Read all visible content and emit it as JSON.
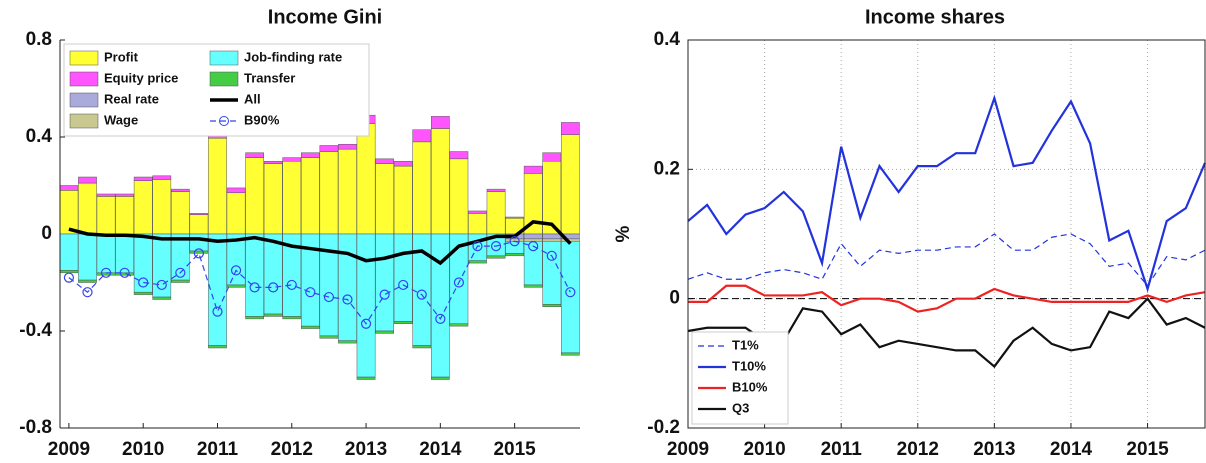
{
  "chart_data": [
    {
      "type": "bar",
      "stacked": true,
      "title": "Income Gini",
      "x": [
        2009,
        2009.25,
        2009.5,
        2009.75,
        2010,
        2010.25,
        2010.5,
        2010.75,
        2011,
        2011.25,
        2011.5,
        2011.75,
        2012,
        2012.25,
        2012.5,
        2012.75,
        2013,
        2013.25,
        2013.5,
        2013.75,
        2014,
        2014.25,
        2014.5,
        2014.75,
        2015,
        2015.25,
        2015.5,
        2015.75
      ],
      "xlim": [
        2008.88,
        2015.88
      ],
      "xticks": [
        2009,
        2010,
        2011,
        2012,
        2013,
        2014,
        2015
      ],
      "ylim": [
        -0.8,
        0.8
      ],
      "yticks": [
        -0.8,
        -0.4,
        0,
        0.4,
        0.8
      ],
      "grid": false,
      "legend": "upper left",
      "series": [
        {
          "name": "Profit",
          "color": "#ffff33",
          "values": [
            0.18,
            0.21,
            0.155,
            0.155,
            0.22,
            0.225,
            0.175,
            0.08,
            0.395,
            0.17,
            0.315,
            0.29,
            0.3,
            0.315,
            0.34,
            0.35,
            0.455,
            0.29,
            0.28,
            0.38,
            0.435,
            0.31,
            0.085,
            0.175,
            0.065,
            0.25,
            0.3,
            0.41
          ]
        },
        {
          "name": "Equity price",
          "color": "#ff55ff",
          "values": [
            0.02,
            0.025,
            0.01,
            0.01,
            0.015,
            0.015,
            0.01,
            0.005,
            0.04,
            0.02,
            0.02,
            0.01,
            0.015,
            0.02,
            0.025,
            0.02,
            0.035,
            0.02,
            0.02,
            0.05,
            0.05,
            0.03,
            0.01,
            0.01,
            0.005,
            0.03,
            0.035,
            0.05
          ]
        },
        {
          "name": "Real rate",
          "color": "#aaaadd",
          "values": [
            0,
            0,
            0,
            0,
            0,
            0,
            0,
            0,
            0,
            0,
            0,
            0,
            0,
            0,
            0,
            0,
            0,
            0,
            0,
            0,
            0,
            0,
            0,
            0,
            -0.02,
            -0.02,
            -0.02,
            -0.02
          ]
        },
        {
          "name": "Wage",
          "color": "#c8c890",
          "values": [
            0,
            0,
            0,
            0,
            0,
            0,
            0,
            0,
            0,
            0,
            0,
            0,
            0,
            0,
            0,
            0,
            0,
            0,
            0,
            0,
            0,
            0,
            0,
            0,
            -0.01,
            -0.01,
            -0.01,
            -0.01
          ]
        },
        {
          "name": "Job-finding rate",
          "color": "#66ffff",
          "values": [
            -0.15,
            -0.19,
            -0.16,
            -0.16,
            -0.24,
            -0.26,
            -0.19,
            -0.07,
            -0.46,
            -0.21,
            -0.34,
            -0.33,
            -0.34,
            -0.38,
            -0.42,
            -0.44,
            -0.59,
            -0.4,
            -0.36,
            -0.46,
            -0.59,
            -0.37,
            -0.11,
            -0.09,
            -0.05,
            -0.18,
            -0.26,
            -0.46
          ]
        },
        {
          "name": "Transfer",
          "color": "#44cc44",
          "values": [
            -0.01,
            -0.01,
            -0.01,
            -0.01,
            -0.01,
            -0.01,
            -0.01,
            -0.01,
            -0.01,
            -0.01,
            -0.01,
            -0.01,
            -0.01,
            -0.01,
            -0.01,
            -0.01,
            -0.01,
            -0.01,
            -0.01,
            -0.01,
            -0.01,
            -0.01,
            -0.01,
            -0.01,
            -0.01,
            -0.01,
            -0.01,
            -0.01
          ]
        },
        {
          "name": "All",
          "type": "line",
          "color": "#000000",
          "width": 3.5,
          "values": [
            0.02,
            0,
            -0.005,
            -0.005,
            -0.01,
            -0.02,
            -0.02,
            -0.02,
            -0.03,
            -0.025,
            -0.015,
            -0.03,
            -0.05,
            -0.06,
            -0.07,
            -0.08,
            -0.11,
            -0.1,
            -0.08,
            -0.07,
            -0.12,
            -0.05,
            -0.03,
            -0.01,
            -0.01,
            0.05,
            0.04,
            -0.04
          ]
        },
        {
          "name": "B90%",
          "type": "line",
          "color": "#3344ee",
          "dashed": true,
          "marker": "circle",
          "width": 1.2,
          "values": [
            -0.18,
            -0.24,
            -0.16,
            -0.16,
            -0.2,
            -0.21,
            -0.16,
            -0.08,
            -0.32,
            -0.15,
            -0.22,
            -0.22,
            -0.21,
            -0.24,
            -0.26,
            -0.27,
            -0.37,
            -0.25,
            -0.21,
            -0.25,
            -0.35,
            -0.2,
            -0.05,
            -0.05,
            -0.03,
            -0.05,
            -0.09,
            -0.24
          ]
        }
      ]
    },
    {
      "type": "line",
      "title": "Income shares",
      "ylabel": "%",
      "x": [
        2009,
        2009.25,
        2009.5,
        2009.75,
        2010,
        2010.25,
        2010.5,
        2010.75,
        2011,
        2011.25,
        2011.5,
        2011.75,
        2012,
        2012.25,
        2012.5,
        2012.75,
        2013,
        2013.25,
        2013.5,
        2013.75,
        2014,
        2014.25,
        2014.5,
        2014.75,
        2015,
        2015.25,
        2015.5,
        2015.75
      ],
      "xlim": [
        2009,
        2015.75
      ],
      "xticks": [
        2009,
        2010,
        2011,
        2012,
        2013,
        2014,
        2015
      ],
      "ylim": [
        -0.2,
        0.4
      ],
      "yticks": [
        -0.2,
        0,
        0.2,
        0.4
      ],
      "grid": true,
      "hline": 0,
      "legend": "lower left",
      "series": [
        {
          "name": "T1%",
          "color": "#2233dd",
          "dashed": true,
          "width": 1.2,
          "values": [
            0.03,
            0.04,
            0.03,
            0.03,
            0.04,
            0.045,
            0.04,
            0.03,
            0.085,
            0.05,
            0.075,
            0.07,
            0.075,
            0.075,
            0.08,
            0.08,
            0.1,
            0.075,
            0.075,
            0.095,
            0.1,
            0.085,
            0.05,
            0.055,
            0.02,
            0.065,
            0.06,
            0.075
          ]
        },
        {
          "name": "T10%",
          "color": "#2233dd",
          "width": 2.2,
          "values": [
            0.12,
            0.145,
            0.1,
            0.13,
            0.14,
            0.165,
            0.135,
            0.055,
            0.235,
            0.125,
            0.205,
            0.165,
            0.205,
            0.205,
            0.225,
            0.225,
            0.31,
            0.205,
            0.21,
            0.26,
            0.305,
            0.24,
            0.09,
            0.105,
            0.015,
            0.12,
            0.14,
            0.21
          ]
        },
        {
          "name": "B10%",
          "color": "#ee2222",
          "width": 2.2,
          "values": [
            -0.005,
            -0.005,
            0.02,
            0.02,
            0.005,
            0.005,
            0.005,
            0.01,
            -0.01,
            0,
            0,
            -0.005,
            -0.02,
            -0.015,
            0,
            0,
            0.015,
            0.005,
            0,
            -0.005,
            -0.005,
            -0.005,
            -0.005,
            -0.005,
            0.005,
            -0.005,
            0.005,
            0.01
          ]
        },
        {
          "name": "Q3",
          "color": "#111111",
          "width": 2.2,
          "values": [
            -0.05,
            -0.045,
            -0.045,
            -0.045,
            -0.065,
            -0.065,
            -0.015,
            -0.02,
            -0.055,
            -0.04,
            -0.075,
            -0.065,
            -0.07,
            -0.075,
            -0.08,
            -0.08,
            -0.105,
            -0.065,
            -0.045,
            -0.07,
            -0.08,
            -0.075,
            -0.02,
            -0.03,
            0,
            -0.04,
            -0.03,
            -0.045
          ]
        }
      ]
    }
  ]
}
